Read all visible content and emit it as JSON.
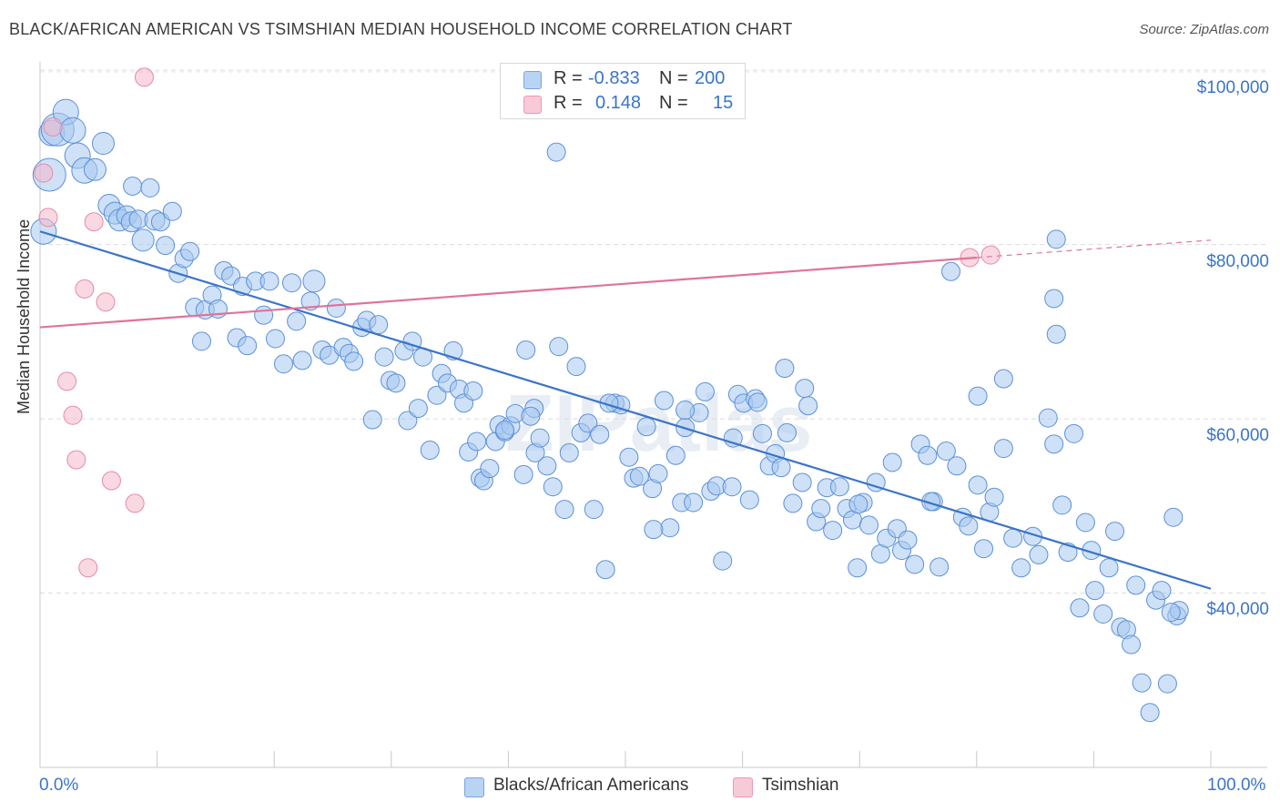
{
  "title": "BLACK/AFRICAN AMERICAN VS TSIMSHIAN MEDIAN HOUSEHOLD INCOME CORRELATION CHART",
  "source": "Source: ZipAtlas.com",
  "watermark": "ZIPatlas",
  "legend": {
    "r_label": "R =",
    "n_label": "N =",
    "series": [
      {
        "name": "Blacks/African Americans",
        "r": "-0.833",
        "n": "200",
        "color": "#a8c8f0"
      },
      {
        "name": "Tsimshian",
        "r": "0.148",
        "n": "15",
        "color": "#f5b8cb"
      }
    ]
  },
  "chart_data": {
    "type": "scatter",
    "title": "BLACK/AFRICAN AMERICAN VS TSIMSHIAN MEDIAN HOUSEHOLD INCOME CORRELATION CHART",
    "xlabel": "",
    "ylabel": "Median Household Income",
    "xlim": [
      0,
      100
    ],
    "ylim": [
      20000,
      102000
    ],
    "x_tick_labels": [
      "0.0%",
      "100.0%"
    ],
    "y_ticks": [
      40000,
      60000,
      80000,
      100000
    ],
    "y_tick_labels": [
      "$40,000",
      "$60,000",
      "$80,000",
      "$100,000"
    ],
    "series": [
      {
        "name": "Blacks/African Americans",
        "color": "#a8c8f0",
        "stroke": "#5b90d8",
        "trend": {
          "x": [
            0,
            100
          ],
          "y": [
            81500,
            40500
          ],
          "color": "#3a74c9"
        },
        "points": [
          [
            0.3,
            81500,
            14
          ],
          [
            0.8,
            88000,
            18
          ],
          [
            1.0,
            92800,
            14
          ],
          [
            1.5,
            93200,
            18
          ],
          [
            2.2,
            95200,
            14
          ],
          [
            2.8,
            93100,
            14
          ],
          [
            3.2,
            90200,
            14
          ],
          [
            3.8,
            88500,
            14
          ],
          [
            4.7,
            88600,
            12
          ],
          [
            5.4,
            91600,
            12
          ],
          [
            5.9,
            84500,
            12
          ],
          [
            6.4,
            83600,
            12
          ],
          [
            6.8,
            82800,
            12
          ],
          [
            7.4,
            83300,
            11
          ],
          [
            7.8,
            82600,
            11
          ],
          [
            7.9,
            86700,
            10
          ],
          [
            8.4,
            82900,
            10
          ],
          [
            8.8,
            80500,
            12
          ],
          [
            9.4,
            86500,
            10
          ],
          [
            9.8,
            82800,
            11
          ],
          [
            10.3,
            82600,
            10
          ],
          [
            10.7,
            79900,
            10
          ],
          [
            11.3,
            83800,
            10
          ],
          [
            11.8,
            76700,
            10
          ],
          [
            12.3,
            78400,
            10
          ],
          [
            12.8,
            79200,
            10
          ],
          [
            13.2,
            72800,
            10
          ],
          [
            13.8,
            68900,
            10
          ],
          [
            14.1,
            72500,
            10
          ],
          [
            14.7,
            74200,
            10
          ],
          [
            15.2,
            72600,
            10
          ],
          [
            15.7,
            77000,
            10
          ],
          [
            16.3,
            76400,
            10
          ],
          [
            16.8,
            69300,
            10
          ],
          [
            17.3,
            75200,
            10
          ],
          [
            17.7,
            68400,
            10
          ],
          [
            18.4,
            75800,
            10
          ],
          [
            19.1,
            71900,
            10
          ],
          [
            19.6,
            75800,
            10
          ],
          [
            20.1,
            69200,
            10
          ],
          [
            20.8,
            66300,
            10
          ],
          [
            21.5,
            75600,
            10
          ],
          [
            21.9,
            71200,
            10
          ],
          [
            22.4,
            66700,
            10
          ],
          [
            23.1,
            73500,
            10
          ],
          [
            23.4,
            75800,
            12
          ],
          [
            24.1,
            67900,
            10
          ],
          [
            24.7,
            67300,
            10
          ],
          [
            25.3,
            72700,
            10
          ],
          [
            25.9,
            68200,
            10
          ],
          [
            26.4,
            67500,
            10
          ],
          [
            26.8,
            66600,
            10
          ],
          [
            27.5,
            70500,
            10
          ],
          [
            27.9,
            71300,
            10
          ],
          [
            28.4,
            59900,
            10
          ],
          [
            28.9,
            70800,
            10
          ],
          [
            29.4,
            67100,
            10
          ],
          [
            29.9,
            64400,
            10
          ],
          [
            30.4,
            64100,
            10
          ],
          [
            31.1,
            67800,
            10
          ],
          [
            31.4,
            59800,
            10
          ],
          [
            31.8,
            68900,
            10
          ],
          [
            32.3,
            61200,
            10
          ],
          [
            32.7,
            67100,
            10
          ],
          [
            33.3,
            56400,
            10
          ],
          [
            33.9,
            62700,
            10
          ],
          [
            34.3,
            65200,
            10
          ],
          [
            34.8,
            64100,
            10
          ],
          [
            35.3,
            67800,
            10
          ],
          [
            35.8,
            63400,
            10
          ],
          [
            36.2,
            61800,
            10
          ],
          [
            36.6,
            56200,
            10
          ],
          [
            37.0,
            63200,
            10
          ],
          [
            37.6,
            53200,
            10
          ],
          [
            37.9,
            52900,
            10
          ],
          [
            38.4,
            54300,
            10
          ],
          [
            38.9,
            57400,
            10
          ],
          [
            39.2,
            59300,
            10
          ],
          [
            39.7,
            58500,
            10
          ],
          [
            40.2,
            59200,
            10
          ],
          [
            40.6,
            60600,
            10
          ],
          [
            41.3,
            53600,
            10
          ],
          [
            41.5,
            67900,
            10
          ],
          [
            42.2,
            61200,
            10
          ],
          [
            42.3,
            56100,
            10
          ],
          [
            42.7,
            57800,
            10
          ],
          [
            43.3,
            54600,
            10
          ],
          [
            43.8,
            52200,
            10
          ],
          [
            44.3,
            68300,
            10
          ],
          [
            44.8,
            49600,
            10
          ],
          [
            45.2,
            56100,
            10
          ],
          [
            45.8,
            66000,
            10
          ],
          [
            46.2,
            58400,
            10
          ],
          [
            46.8,
            59500,
            10
          ],
          [
            47.3,
            49600,
            10
          ],
          [
            47.8,
            58200,
            10
          ],
          [
            48.3,
            42700,
            10
          ],
          [
            49.1,
            61800,
            10
          ],
          [
            49.6,
            61600,
            10
          ],
          [
            50.3,
            55600,
            10
          ],
          [
            50.7,
            53200,
            10
          ],
          [
            51.2,
            53400,
            10
          ],
          [
            51.8,
            59100,
            10
          ],
          [
            52.3,
            52000,
            10
          ],
          [
            52.8,
            53700,
            10
          ],
          [
            53.3,
            62100,
            10
          ],
          [
            53.8,
            47500,
            10
          ],
          [
            54.3,
            55800,
            10
          ],
          [
            54.8,
            50400,
            10
          ],
          [
            55.1,
            59000,
            10
          ],
          [
            55.8,
            50400,
            10
          ],
          [
            56.3,
            60700,
            10
          ],
          [
            56.8,
            63100,
            10
          ],
          [
            57.3,
            51700,
            10
          ],
          [
            57.8,
            52300,
            10
          ],
          [
            58.3,
            43700,
            10
          ],
          [
            59.1,
            52200,
            10
          ],
          [
            59.6,
            62800,
            10
          ],
          [
            60.1,
            61800,
            10
          ],
          [
            60.6,
            50700,
            10
          ],
          [
            61.1,
            62300,
            10
          ],
          [
            61.7,
            58300,
            10
          ],
          [
            62.3,
            54600,
            10
          ],
          [
            62.8,
            56000,
            10
          ],
          [
            63.3,
            54400,
            10
          ],
          [
            63.8,
            58400,
            10
          ],
          [
            64.3,
            50300,
            10
          ],
          [
            65.1,
            52700,
            10
          ],
          [
            65.6,
            61500,
            10
          ],
          [
            66.3,
            48200,
            10
          ],
          [
            66.7,
            49700,
            10
          ],
          [
            67.2,
            52100,
            10
          ],
          [
            67.7,
            47200,
            10
          ],
          [
            68.3,
            52200,
            10
          ],
          [
            68.9,
            49700,
            10
          ],
          [
            69.4,
            48400,
            10
          ],
          [
            69.8,
            42900,
            10
          ],
          [
            70.3,
            50400,
            10
          ],
          [
            70.8,
            47800,
            10
          ],
          [
            71.4,
            52700,
            10
          ],
          [
            71.8,
            44500,
            10
          ],
          [
            72.3,
            46300,
            10
          ],
          [
            72.8,
            55000,
            10
          ],
          [
            73.2,
            47400,
            10
          ],
          [
            73.6,
            44900,
            10
          ],
          [
            74.1,
            46100,
            10
          ],
          [
            74.7,
            43300,
            10
          ],
          [
            75.2,
            57100,
            10
          ],
          [
            75.8,
            55800,
            10
          ],
          [
            76.3,
            50500,
            10
          ],
          [
            76.8,
            43000,
            10
          ],
          [
            77.4,
            56300,
            10
          ],
          [
            78.3,
            54600,
            10
          ],
          [
            78.8,
            48700,
            10
          ],
          [
            79.3,
            47700,
            10
          ],
          [
            80.1,
            52400,
            10
          ],
          [
            80.6,
            45100,
            10
          ],
          [
            81.1,
            49300,
            10
          ],
          [
            81.5,
            51000,
            10
          ],
          [
            82.3,
            56600,
            10
          ],
          [
            83.1,
            46300,
            10
          ],
          [
            83.8,
            42900,
            10
          ],
          [
            84.8,
            46500,
            10
          ],
          [
            85.3,
            44400,
            10
          ],
          [
            86.1,
            60100,
            10
          ],
          [
            86.6,
            57100,
            10
          ],
          [
            87.3,
            50100,
            10
          ],
          [
            87.8,
            44700,
            10
          ],
          [
            88.3,
            58300,
            10
          ],
          [
            88.8,
            38300,
            10
          ],
          [
            89.3,
            48100,
            10
          ],
          [
            89.8,
            44900,
            10
          ],
          [
            90.1,
            40300,
            10
          ],
          [
            90.8,
            37600,
            10
          ],
          [
            91.3,
            42900,
            10
          ],
          [
            91.8,
            47100,
            10
          ],
          [
            92.3,
            36100,
            10
          ],
          [
            92.8,
            35800,
            10
          ],
          [
            93.2,
            34100,
            10
          ],
          [
            93.6,
            40900,
            10
          ],
          [
            94.1,
            29700,
            10
          ],
          [
            94.8,
            26300,
            10
          ],
          [
            95.3,
            39200,
            10
          ],
          [
            95.8,
            40300,
            10
          ],
          [
            96.3,
            29600,
            10
          ],
          [
            96.8,
            48700,
            10
          ],
          [
            97.1,
            37400,
            10
          ],
          [
            97.3,
            38000,
            10
          ],
          [
            61.3,
            61900,
            10
          ],
          [
            39.7,
            58700,
            10
          ],
          [
            55.1,
            61000,
            10
          ],
          [
            69.9,
            50200,
            10
          ],
          [
            76.1,
            50500,
            10
          ],
          [
            96.6,
            37800,
            10
          ],
          [
            77.8,
            76900,
            10
          ],
          [
            86.8,
            80600,
            10
          ],
          [
            86.6,
            73800,
            10
          ],
          [
            86.8,
            69700,
            10
          ],
          [
            82.3,
            64600,
            10
          ],
          [
            80.1,
            62600,
            10
          ],
          [
            44.1,
            90600,
            10
          ],
          [
            41.9,
            60300,
            10
          ],
          [
            48.6,
            61800,
            10
          ],
          [
            63.6,
            65800,
            10
          ],
          [
            65.3,
            63500,
            10
          ],
          [
            59.2,
            57800,
            10
          ],
          [
            37.3,
            57400,
            10
          ],
          [
            52.4,
            47300,
            10
          ]
        ]
      },
      {
        "name": "Tsimshian",
        "color": "#f5b8cb",
        "stroke": "#e48aa8",
        "trend": {
          "x": [
            0,
            80
          ],
          "y": [
            70500,
            78500
          ],
          "dashed_to": [
            100,
            80500
          ],
          "color": "#e0739a"
        },
        "points": [
          [
            0.3,
            88200,
            10
          ],
          [
            0.7,
            83100,
            10
          ],
          [
            1.1,
            93500,
            10
          ],
          [
            2.3,
            64300,
            10
          ],
          [
            2.8,
            60400,
            10
          ],
          [
            3.1,
            55300,
            10
          ],
          [
            3.8,
            74900,
            10
          ],
          [
            4.1,
            42900,
            10
          ],
          [
            4.6,
            82600,
            10
          ],
          [
            5.6,
            73400,
            10
          ],
          [
            6.1,
            52900,
            10
          ],
          [
            8.1,
            50300,
            10
          ],
          [
            8.9,
            99200,
            10
          ],
          [
            79.4,
            78500,
            10
          ],
          [
            81.2,
            78800,
            10
          ]
        ]
      }
    ]
  }
}
